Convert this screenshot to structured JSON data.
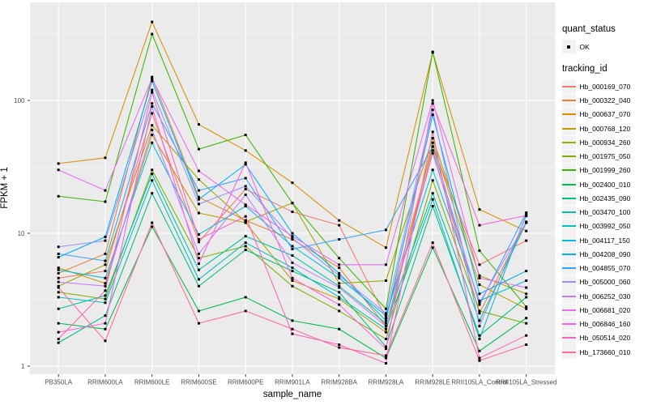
{
  "chart_data": {
    "type": "line",
    "title": "",
    "xlabel": "sample_name",
    "ylabel": "FPKM + 1",
    "y_scale": "log10",
    "ylim": [
      0.9,
      545
    ],
    "y_ticks": [
      "1",
      "10",
      "100"
    ],
    "y_tick_values": [
      1,
      10,
      100
    ],
    "y_minor_tick_values": [
      3.162,
      31.62,
      316.2
    ],
    "grid": true,
    "legend_position": "right",
    "categories": [
      "PB350LA",
      "RRIM600LA",
      "RRIM600LE",
      "RRIM600SE",
      "RRIM600PE",
      "RRIM901LA",
      "RRIM928BA",
      "RRIM928LA",
      "RRIM928LE",
      "RRII105LA_Control",
      "RRII105LA_Stressed"
    ],
    "legend": {
      "quant_status": {
        "title": "quant_status",
        "items": [
          {
            "label": "OK",
            "marker": "point",
            "color": "#000000"
          }
        ]
      },
      "tracking_id": {
        "title": "tracking_id"
      }
    },
    "series": [
      {
        "name": "Hb_000169_070",
        "color": "#F8766D",
        "values": [
          4.6,
          5.2,
          80,
          8.6,
          21.5,
          14.5,
          11.5,
          2.3,
          45,
          5.8,
          8.8
        ]
      },
      {
        "name": "Hb_000322_040",
        "color": "#EA8331",
        "values": [
          5.0,
          7.0,
          150,
          18.7,
          12.5,
          9.0,
          5.5,
          2.0,
          42,
          2.5,
          12.2
        ]
      },
      {
        "name": "Hb_000637_070",
        "color": "#D89000",
        "values": [
          33.5,
          37,
          390,
          66,
          42,
          24,
          12.5,
          7.8,
          230,
          15.1,
          10.4
        ]
      },
      {
        "name": "Hb_000768_120",
        "color": "#C09B00",
        "values": [
          5.5,
          4.2,
          55,
          14.2,
          12.0,
          4.4,
          3.2,
          1.8,
          48,
          4.1,
          2.7
        ]
      },
      {
        "name": "Hb_000934_260",
        "color": "#A3A500",
        "values": [
          4.0,
          5.8,
          65,
          25.4,
          12.2,
          16.9,
          4.2,
          4.4,
          52,
          4.8,
          3.5
        ]
      },
      {
        "name": "Hb_001975_050",
        "color": "#7CAE00",
        "values": [
          3.6,
          3.2,
          30,
          6.5,
          8.0,
          4.0,
          2.6,
          1.6,
          25,
          2.6,
          2.1
        ]
      },
      {
        "name": "Hb_001999_260",
        "color": "#39B600",
        "values": [
          19,
          17.3,
          316,
          43,
          55,
          16.9,
          6.5,
          2.7,
          232,
          7.4,
          2.8
        ]
      },
      {
        "name": "Hb_002400_010",
        "color": "#00BB4E",
        "values": [
          2.1,
          1.9,
          11.2,
          2.6,
          3.3,
          2.2,
          1.9,
          1.15,
          7.8,
          1.3,
          2.3
        ]
      },
      {
        "name": "Hb_002435_090",
        "color": "#00BF7D",
        "values": [
          1.5,
          2.4,
          20,
          4.0,
          7.5,
          5.2,
          3.6,
          1.4,
          16,
          1.7,
          3.3
        ]
      },
      {
        "name": "Hb_003470_100",
        "color": "#00C1A3",
        "values": [
          2.7,
          3.4,
          28,
          5.3,
          9.5,
          6.8,
          4.0,
          2.1,
          20,
          2.2,
          12.0
        ]
      },
      {
        "name": "Hb_003992_050",
        "color": "#00BFC4",
        "values": [
          3.3,
          3.0,
          25,
          4.5,
          8.5,
          5.5,
          3.3,
          1.9,
          18,
          1.6,
          13.9
        ]
      },
      {
        "name": "Hb_004117_150",
        "color": "#00BAE0",
        "values": [
          5.3,
          4.6,
          48,
          9.8,
          16,
          8.0,
          4.6,
          2.4,
          30,
          3.1,
          4.4
        ]
      },
      {
        "name": "Hb_004208_090",
        "color": "#00B0F6",
        "values": [
          6.6,
          9.4,
          140,
          18.0,
          33,
          10.0,
          5.0,
          2.2,
          78,
          3.5,
          5.2
        ]
      },
      {
        "name": "Hb_004855_070",
        "color": "#35A2FF",
        "values": [
          7.0,
          6.2,
          95,
          21,
          26,
          7.6,
          9.0,
          10.6,
          45,
          2.9,
          14.3
        ]
      },
      {
        "name": "Hb_005000_060",
        "color": "#9590FF",
        "values": [
          7.9,
          8.8,
          120,
          16.6,
          22.6,
          9.2,
          4.8,
          2.5,
          85,
          2.0,
          13.5
        ]
      },
      {
        "name": "Hb_006252_030",
        "color": "#C77CFF",
        "values": [
          4.3,
          4.0,
          60,
          7.0,
          19.5,
          6.0,
          3.9,
          2.0,
          40,
          3.0,
          12.1
        ]
      },
      {
        "name": "Hb_006681_020",
        "color": "#E76BF3",
        "values": [
          30,
          21,
          146,
          29.5,
          16.4,
          9.5,
          5.8,
          5.8,
          100,
          4.6,
          3.9
        ]
      },
      {
        "name": "Hb_006846_160",
        "color": "#FA62DB",
        "values": [
          1.8,
          2.1,
          90,
          5.9,
          34,
          4.6,
          2.9,
          1.35,
          95,
          11.5,
          13.6
        ]
      },
      {
        "name": "Hb_050514_020",
        "color": "#FF62BC",
        "values": [
          1.6,
          3.7,
          115,
          9.0,
          13.4,
          1.75,
          1.45,
          1.05,
          58,
          1.15,
          1.7
        ]
      },
      {
        "name": "Hb_173660_010",
        "color": "#FF6A98",
        "values": [
          3.9,
          1.55,
          12,
          2.1,
          2.6,
          1.9,
          1.38,
          1.2,
          8.5,
          1.1,
          1.45
        ]
      }
    ],
    "style": {
      "panel_bg": "#EBEBEB",
      "grid_color": "#FFFFFF",
      "tick_color": "#333333",
      "tick_label_color": "#4D4D4D",
      "axis_title_color": "#000000",
      "marker_color": "#000000",
      "legend_key_bg": "#F2F2F2"
    }
  }
}
